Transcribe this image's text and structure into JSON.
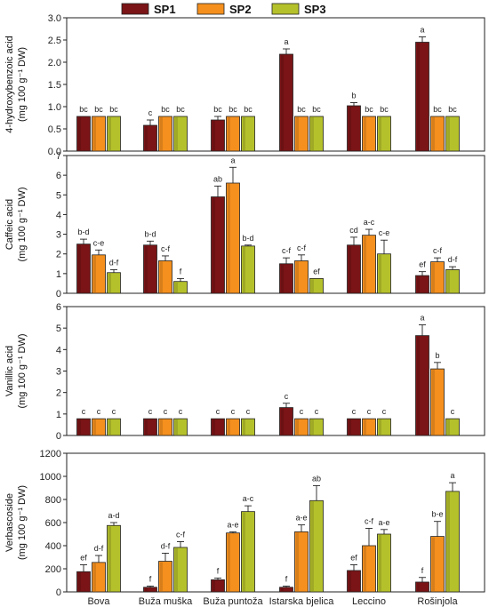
{
  "legend": [
    {
      "name": "SP1",
      "color": "#7a1416"
    },
    {
      "name": "SP2",
      "color": "#f5901e"
    },
    {
      "name": "SP3",
      "color": "#b5c12b"
    }
  ],
  "chart_data": [
    {
      "type": "bar",
      "ylabel_line1": "4-hydroxybenzoic acid",
      "ylabel_line2": "(mg 100 g⁻¹ DW)",
      "ylim": [
        0,
        3.0
      ],
      "yticks": [
        "0.0",
        "0.5",
        "1.0",
        "1.5",
        "2.0",
        "2.5",
        "3.0"
      ],
      "categories": [
        "Bova",
        "Buža muška",
        "Buža puntoža",
        "Istarska bjelica",
        "Leccino",
        "Rošinjola"
      ],
      "series": [
        {
          "name": "SP1",
          "values": [
            0.78,
            0.58,
            0.7,
            2.18,
            1.02,
            2.45
          ],
          "errors": [
            0,
            0.12,
            0.08,
            0.12,
            0.07,
            0.12
          ],
          "labels": [
            "bc",
            "c",
            "bc",
            "a",
            "b",
            "a"
          ]
        },
        {
          "name": "SP2",
          "values": [
            0.78,
            0.78,
            0.78,
            0.78,
            0.78,
            0.78
          ],
          "errors": [
            0,
            0,
            0,
            0,
            0,
            0
          ],
          "labels": [
            "bc",
            "bc",
            "bc",
            "bc",
            "bc",
            "bc"
          ]
        },
        {
          "name": "SP3",
          "values": [
            0.78,
            0.78,
            0.78,
            0.78,
            0.78,
            0.78
          ],
          "errors": [
            0,
            0,
            0,
            0,
            0,
            0
          ],
          "labels": [
            "bc",
            "bc",
            "bc",
            "bc",
            "bc",
            "bc"
          ]
        }
      ]
    },
    {
      "type": "bar",
      "ylabel_line1": "Caffeic acid",
      "ylabel_line2": "(mg 100 g⁻¹ DW)",
      "ylim": [
        0,
        7
      ],
      "yticks": [
        "0",
        "1",
        "2",
        "3",
        "4",
        "5",
        "6",
        "7"
      ],
      "categories": [
        "Bova",
        "Buža muška",
        "Buža puntoža",
        "Istarska bjelica",
        "Leccino",
        "Rošinjola"
      ],
      "series": [
        {
          "name": "SP1",
          "values": [
            2.5,
            2.45,
            4.9,
            1.5,
            2.45,
            0.9
          ],
          "errors": [
            0.25,
            0.2,
            0.55,
            0.3,
            0.4,
            0.2
          ],
          "labels": [
            "b-d",
            "b-d",
            "ab",
            "c-f",
            "cd",
            "ef"
          ]
        },
        {
          "name": "SP2",
          "values": [
            1.95,
            1.65,
            5.6,
            1.65,
            2.95,
            1.6
          ],
          "errors": [
            0.25,
            0.25,
            0.8,
            0.3,
            0.3,
            0.2
          ],
          "labels": [
            "c-e",
            "c-f",
            "a",
            "c-f",
            "a-c",
            "c-f"
          ]
        },
        {
          "name": "SP3",
          "values": [
            1.05,
            0.6,
            2.4,
            0.75,
            2.0,
            1.2
          ],
          "errors": [
            0.15,
            0.15,
            0.05,
            0,
            0.7,
            0.15
          ],
          "labels": [
            "d-f",
            "f",
            "b-d",
            "ef",
            "c-e",
            "d-f"
          ]
        }
      ]
    },
    {
      "type": "bar",
      "ylabel_line1": "Vanillic acid",
      "ylabel_line2": "(mg 100 g⁻¹ DW)",
      "ylim": [
        0,
        6
      ],
      "yticks": [
        "0",
        "1",
        "2",
        "3",
        "4",
        "5",
        "6"
      ],
      "categories": [
        "Bova",
        "Buža muška",
        "Buža puntoža",
        "Istarska bjelica",
        "Leccino",
        "Rošinjola"
      ],
      "series": [
        {
          "name": "SP1",
          "values": [
            0.78,
            0.78,
            0.78,
            1.3,
            0.78,
            4.65
          ],
          "errors": [
            0,
            0,
            0,
            0.2,
            0,
            0.5
          ],
          "labels": [
            "c",
            "c",
            "c",
            "c",
            "c",
            "a"
          ]
        },
        {
          "name": "SP2",
          "values": [
            0.78,
            0.78,
            0.78,
            0.78,
            0.78,
            3.1
          ],
          "errors": [
            0,
            0,
            0,
            0,
            0,
            0.3
          ],
          "labels": [
            "c",
            "c",
            "c",
            "c",
            "c",
            "b"
          ]
        },
        {
          "name": "SP3",
          "values": [
            0.78,
            0.78,
            0.78,
            0.78,
            0.78,
            0.78
          ],
          "errors": [
            0,
            0,
            0,
            0,
            0,
            0
          ],
          "labels": [
            "c",
            "c",
            "c",
            "c",
            "c",
            "c"
          ]
        }
      ]
    },
    {
      "type": "bar",
      "ylabel_line1": "Verbascoside",
      "ylabel_line2": "(mg 100 g⁻¹ DW)",
      "ylim": [
        0,
        1200
      ],
      "yticks": [
        "0",
        "200",
        "400",
        "600",
        "800",
        "1000",
        "1200"
      ],
      "categories": [
        "Bova",
        "Buža muška",
        "Buža puntoža",
        "Istarska bjelica",
        "Leccino",
        "Rošinjola"
      ],
      "series": [
        {
          "name": "SP1",
          "values": [
            175,
            40,
            105,
            40,
            185,
            85
          ],
          "errors": [
            60,
            10,
            15,
            10,
            50,
            40
          ],
          "labels": [
            "ef",
            "f",
            "f",
            "f",
            "ef",
            "f"
          ]
        },
        {
          "name": "SP2",
          "values": [
            255,
            265,
            510,
            520,
            400,
            480
          ],
          "errors": [
            60,
            70,
            10,
            60,
            150,
            130
          ],
          "labels": [
            "d-f",
            "d-f",
            "a-e",
            "a-e",
            "c-f",
            "b-e"
          ]
        },
        {
          "name": "SP3",
          "values": [
            575,
            385,
            695,
            790,
            500,
            870
          ],
          "errors": [
            25,
            50,
            50,
            130,
            40,
            75
          ],
          "labels": [
            "a-d",
            "c-f",
            "a-c",
            "ab",
            "a-e",
            "a"
          ]
        }
      ]
    }
  ]
}
